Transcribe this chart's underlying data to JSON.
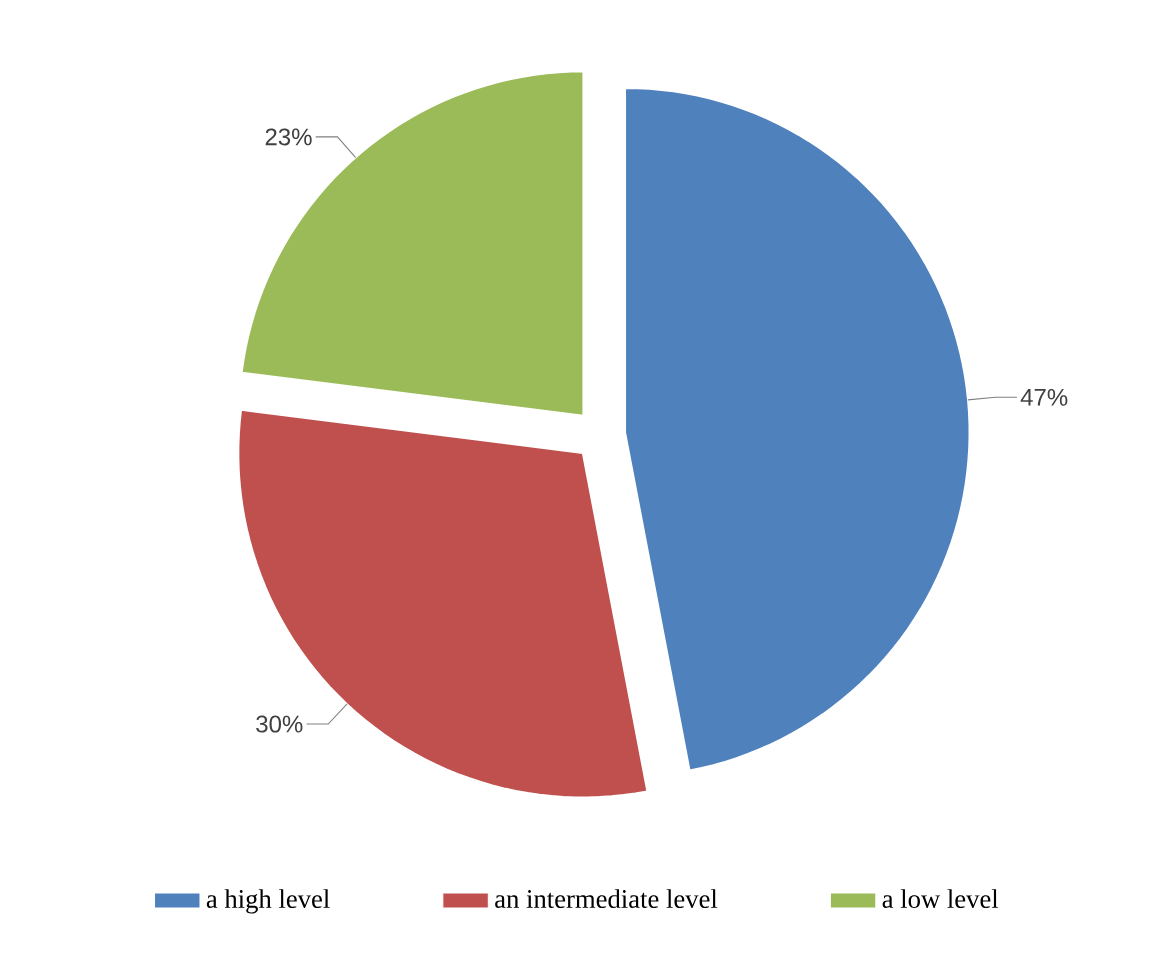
{
  "chart_data": {
    "type": "pie",
    "categories": [
      "a high level",
      "an intermediate level",
      "a low level"
    ],
    "values": [
      47,
      30,
      23
    ],
    "colors": [
      "#4f81bd",
      "#c0504d",
      "#9bbb59"
    ],
    "value_labels": [
      "47%",
      "30%",
      "23%"
    ],
    "legend": "bottom"
  }
}
